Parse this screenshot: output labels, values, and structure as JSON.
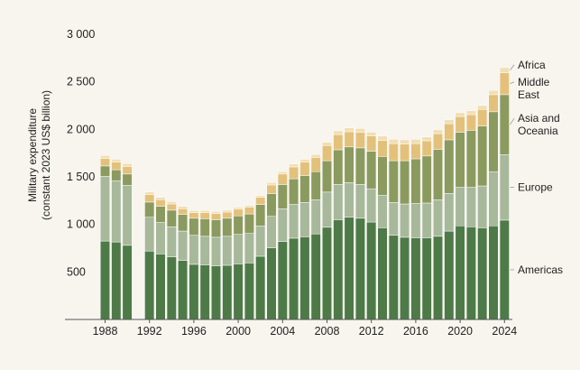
{
  "chart_data": {
    "type": "bar",
    "stacked": true,
    "ylabel_line1": "Military expenditure",
    "ylabel_line2": "(constant 2023 US$ billion)",
    "ylim": [
      0,
      3000
    ],
    "y_ticks": [
      {
        "value": 500,
        "label": "500"
      },
      {
        "value": 1000,
        "label": "1 000"
      },
      {
        "value": 1500,
        "label": "1 500"
      },
      {
        "value": 2000,
        "label": "2 000"
      },
      {
        "value": 2500,
        "label": "2 500"
      },
      {
        "value": 3000,
        "label": "3 000"
      }
    ],
    "x_tick_labels": [
      "1988",
      "1992",
      "1996",
      "2000",
      "2004",
      "2008",
      "2012",
      "2016",
      "2020",
      "2024"
    ],
    "x_tick_years": [
      1988,
      1992,
      1996,
      2000,
      2004,
      2008,
      2012,
      2016,
      2020,
      2024
    ],
    "years": [
      1988,
      1989,
      1990,
      1991,
      1992,
      1993,
      1994,
      1995,
      1996,
      1997,
      1998,
      1999,
      2000,
      2001,
      2002,
      2003,
      2004,
      2005,
      2006,
      2007,
      2008,
      2009,
      2010,
      2011,
      2012,
      2013,
      2014,
      2015,
      2016,
      2017,
      2018,
      2019,
      2020,
      2021,
      2022,
      2023,
      2024
    ],
    "missing_years": [
      1991
    ],
    "series": [
      {
        "name": "Americas",
        "color": "#4e7a47",
        "values": [
          825,
          815,
          780,
          null,
          720,
          690,
          660,
          620,
          580,
          575,
          565,
          570,
          585,
          595,
          665,
          755,
          820,
          855,
          870,
          900,
          970,
          1050,
          1075,
          1065,
          1025,
          965,
          885,
          865,
          860,
          860,
          875,
          930,
          985,
          975,
          965,
          985,
          1045
        ]
      },
      {
        "name": "Europe",
        "color": "#a7b89b",
        "values": [
          680,
          645,
          630,
          null,
          355,
          330,
          315,
          310,
          305,
          300,
          300,
          305,
          310,
          310,
          320,
          330,
          345,
          355,
          360,
          360,
          370,
          370,
          365,
          355,
          350,
          340,
          345,
          350,
          360,
          365,
          385,
          395,
          405,
          415,
          440,
          570,
          690
        ]
      },
      {
        "name": "Asia and Oceania",
        "color": "#8b9a5e",
        "values": [
          110,
          115,
          120,
          null,
          160,
          170,
          175,
          175,
          180,
          185,
          185,
          190,
          195,
          205,
          225,
          240,
          255,
          270,
          285,
          295,
          330,
          365,
          375,
          385,
          395,
          410,
          440,
          455,
          470,
          495,
          530,
          565,
          580,
          600,
          630,
          630,
          630
        ]
      },
      {
        "name": "Middle East",
        "color": "#e3c17b",
        "values": [
          80,
          80,
          80,
          null,
          80,
          70,
          65,
          60,
          60,
          65,
          65,
          65,
          70,
          70,
          75,
          90,
          110,
          125,
          140,
          150,
          160,
          160,
          160,
          165,
          160,
          170,
          180,
          175,
          160,
          160,
          165,
          170,
          165,
          165,
          175,
          180,
          230
        ]
      },
      {
        "name": "Africa",
        "color": "#f1deb3",
        "values": [
          30,
          30,
          30,
          null,
          25,
          25,
          25,
          25,
          20,
          20,
          20,
          20,
          20,
          20,
          20,
          25,
          25,
          30,
          30,
          30,
          35,
          40,
          40,
          40,
          40,
          45,
          45,
          45,
          45,
          40,
          40,
          40,
          40,
          40,
          40,
          45,
          55
        ]
      }
    ],
    "legend_placement": "right"
  }
}
